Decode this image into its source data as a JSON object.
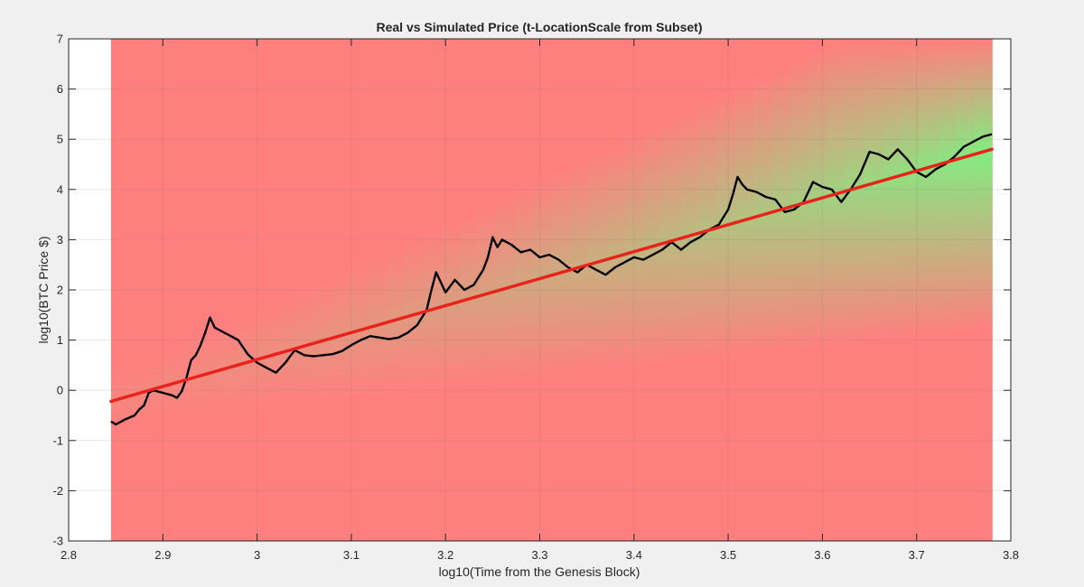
{
  "chart_data": {
    "type": "line",
    "title": "Real vs Simulated Price (t-LocationScale from Subset)",
    "xlabel": "log10(Time from the Genesis Block)",
    "ylabel": "log10(BTC Price $)",
    "xlim": [
      2.8,
      3.8
    ],
    "ylim": [
      -3,
      7
    ],
    "xticks": [
      2.8,
      2.9,
      3.0,
      3.1,
      3.2,
      3.3,
      3.4,
      3.5,
      3.6,
      3.7,
      3.8
    ],
    "xtick_labels": [
      "2.8",
      "2.9",
      "3",
      "3.1",
      "3.2",
      "3.3",
      "3.4",
      "3.5",
      "3.6",
      "3.7",
      "3.8"
    ],
    "yticks": [
      -3,
      -2,
      -1,
      0,
      1,
      2,
      3,
      4,
      5,
      6,
      7
    ],
    "ytick_labels": [
      "-3",
      "-2",
      "-1",
      "0",
      "1",
      "2",
      "3",
      "4",
      "5",
      "6",
      "7"
    ],
    "grid": true,
    "heatmap": {
      "x_range": [
        2.845,
        3.78
      ],
      "colors": {
        "low": "#ff7f7f",
        "high": "#80ee80"
      }
    },
    "series": [
      {
        "color": "#000000",
        "x": [
          2.845,
          2.85,
          2.86,
          2.87,
          2.875,
          2.88,
          2.885,
          2.89,
          2.9,
          2.91,
          2.915,
          2.92,
          2.925,
          2.93,
          2.935,
          2.94,
          2.945,
          2.95,
          2.955,
          2.96,
          2.97,
          2.98,
          2.99,
          3.0,
          3.01,
          3.02,
          3.03,
          3.04,
          3.05,
          3.06,
          3.07,
          3.08,
          3.09,
          3.1,
          3.11,
          3.12,
          3.13,
          3.14,
          3.15,
          3.16,
          3.17,
          3.18,
          3.185,
          3.19,
          3.2,
          3.21,
          3.22,
          3.23,
          3.24,
          3.245,
          3.25,
          3.255,
          3.26,
          3.27,
          3.28,
          3.29,
          3.3,
          3.31,
          3.32,
          3.33,
          3.34,
          3.35,
          3.36,
          3.37,
          3.38,
          3.39,
          3.4,
          3.41,
          3.42,
          3.43,
          3.44,
          3.45,
          3.46,
          3.47,
          3.48,
          3.49,
          3.5,
          3.505,
          3.51,
          3.515,
          3.52,
          3.53,
          3.54,
          3.55,
          3.56,
          3.57,
          3.58,
          3.59,
          3.6,
          3.61,
          3.62,
          3.63,
          3.64,
          3.65,
          3.66,
          3.67,
          3.68,
          3.69,
          3.7,
          3.71,
          3.72,
          3.73,
          3.74,
          3.75,
          3.76,
          3.77,
          3.78
        ],
        "y": [
          -0.62,
          -0.68,
          -0.58,
          -0.5,
          -0.38,
          -0.3,
          -0.05,
          0.0,
          -0.05,
          -0.1,
          -0.15,
          -0.02,
          0.25,
          0.6,
          0.7,
          0.9,
          1.15,
          1.45,
          1.25,
          1.2,
          1.1,
          1.0,
          0.72,
          0.55,
          0.45,
          0.35,
          0.55,
          0.8,
          0.7,
          0.68,
          0.7,
          0.72,
          0.78,
          0.9,
          1.0,
          1.08,
          1.05,
          1.02,
          1.05,
          1.15,
          1.3,
          1.6,
          2.0,
          2.35,
          1.95,
          2.2,
          2.0,
          2.1,
          2.4,
          2.65,
          3.05,
          2.85,
          3.0,
          2.9,
          2.75,
          2.8,
          2.65,
          2.7,
          2.6,
          2.45,
          2.35,
          2.5,
          2.4,
          2.3,
          2.45,
          2.55,
          2.65,
          2.6,
          2.7,
          2.8,
          2.95,
          2.8,
          2.95,
          3.05,
          3.2,
          3.3,
          3.6,
          3.9,
          4.25,
          4.1,
          4.0,
          3.95,
          3.85,
          3.8,
          3.55,
          3.6,
          3.75,
          4.15,
          4.05,
          4.0,
          3.75,
          4.0,
          4.3,
          4.75,
          4.7,
          4.6,
          4.8,
          4.6,
          4.35,
          4.25,
          4.4,
          4.5,
          4.65,
          4.85,
          4.95,
          5.05,
          5.1
        ]
      },
      {
        "color": "#e8231c",
        "x": [
          2.845,
          3.78
        ],
        "y": [
          -0.22,
          4.8
        ]
      }
    ]
  }
}
